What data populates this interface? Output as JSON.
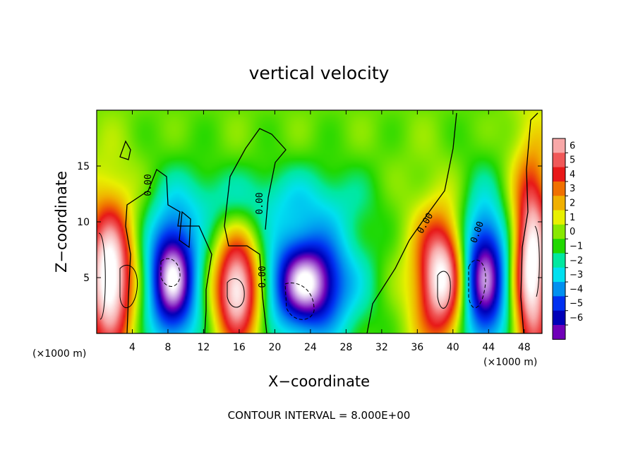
{
  "chart_data": {
    "type": "heatmap",
    "title": "vertical velocity",
    "xlabel": "X−coordinate",
    "ylabel": "Z−coordinate",
    "x_unit_label_left": "(×1000 m)",
    "x_unit_label_right": "(×1000 m)",
    "xlim": [
      0,
      50
    ],
    "ylim": [
      0,
      20
    ],
    "x_ticks": [
      4,
      8,
      12,
      16,
      20,
      24,
      28,
      32,
      36,
      40,
      44,
      48
    ],
    "x_tick_labels": [
      "4",
      "8",
      "12",
      "16",
      "20",
      "24",
      "28",
      "32",
      "36",
      "40",
      "44",
      "48"
    ],
    "y_ticks": [
      5,
      10,
      15
    ],
    "y_tick_labels": [
      "5",
      "10",
      "15"
    ],
    "colorbar": {
      "levels": [
        6,
        5,
        4,
        3,
        2,
        1,
        0,
        -1,
        -2,
        -3,
        -4,
        -5,
        -6
      ],
      "labels": [
        "6",
        "5",
        "4",
        "3",
        "2",
        "1",
        "0",
        "−1",
        "−2",
        "−3",
        "−4",
        "−5",
        "−6"
      ],
      "colors": [
        "#f8a8a8",
        "#f05858",
        "#e81818",
        "#f07000",
        "#f0b000",
        "#e8f000",
        "#88e800",
        "#20d800",
        "#00e8a0",
        "#00e0f0",
        "#0090f0",
        "#0030f0",
        "#0000b8",
        "#7000b8"
      ]
    },
    "contour_label": "0.00",
    "footnote": "CONTOUR INTERVAL = 8.000E+00",
    "features": [
      {
        "kind": "updraft",
        "x": 1.5,
        "z": 5,
        "sx": 1.6,
        "sz": 4.0,
        "amp": 8
      },
      {
        "kind": "downdraft",
        "x": 8.5,
        "z": 5,
        "sx": 1.8,
        "sz": 3.5,
        "amp": -8
      },
      {
        "kind": "updraft",
        "x": 15.8,
        "z": 4,
        "sx": 1.6,
        "sz": 3.0,
        "amp": 8
      },
      {
        "kind": "downdraft",
        "x": 23.5,
        "z": 4.5,
        "sx": 2.8,
        "sz": 2.8,
        "amp": -8
      },
      {
        "kind": "updraft",
        "x": 38.8,
        "z": 5,
        "sx": 1.7,
        "sz": 3.5,
        "amp": 8
      },
      {
        "kind": "downdraft",
        "x": 43.5,
        "z": 5,
        "sx": 1.8,
        "sz": 4.0,
        "amp": -8
      },
      {
        "kind": "updraft",
        "x": 48.8,
        "z": 6,
        "sx": 1.3,
        "sz": 5.5,
        "amp": 8
      }
    ]
  }
}
